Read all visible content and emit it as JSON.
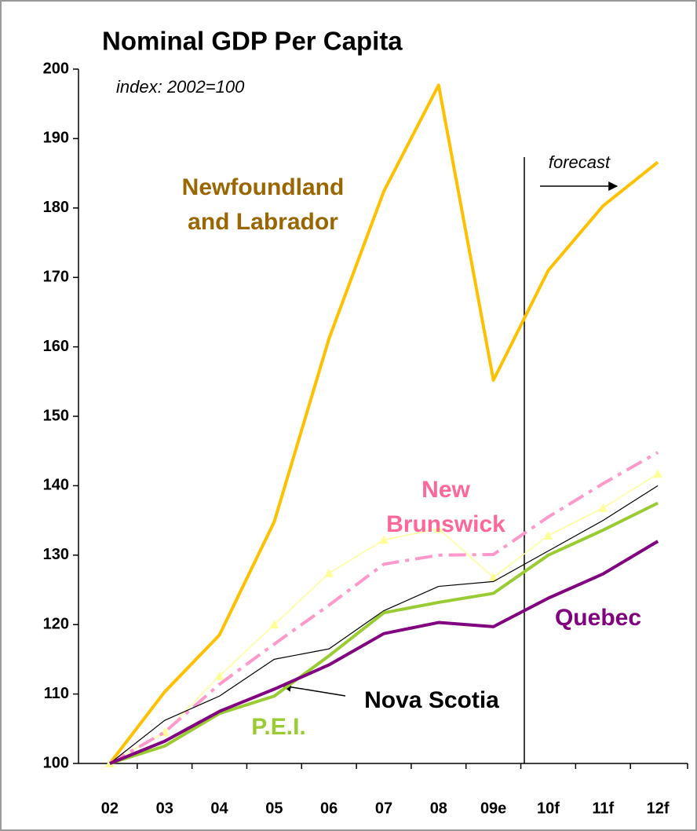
{
  "chart_data": {
    "type": "line",
    "title": "Nominal GDP Per Capita",
    "subtitle": "index: 2002=100",
    "categories": [
      "02",
      "03",
      "04",
      "05",
      "06",
      "07",
      "08",
      "09e",
      "10f",
      "11f",
      "12f"
    ],
    "ylim": [
      100,
      200
    ],
    "yticks": [
      100,
      110,
      120,
      130,
      140,
      150,
      160,
      170,
      180,
      190,
      200
    ],
    "series": [
      {
        "name": "Newfoundland and Labrador",
        "color": "#FFC000",
        "width": 4,
        "values": [
          100,
          110.3,
          118.5,
          134.8,
          161.2,
          182.4,
          197.7,
          155.2,
          171,
          180.3,
          186.6
        ]
      },
      {
        "color": "#FFFF99",
        "width": 1.5,
        "marker": "triangle",
        "values": [
          100,
          104.5,
          112.6,
          120,
          127.4,
          132.2,
          133.8,
          126.8,
          132.8,
          136.8,
          141.7
        ]
      },
      {
        "name": "New Brunswick",
        "color": "#FF99CC",
        "width": 4,
        "dash": true,
        "values": [
          100,
          104.5,
          111.4,
          117.2,
          122.8,
          128.7,
          130,
          130.1,
          135.5,
          140.3,
          144.8
        ]
      },
      {
        "name": "Nova Scotia",
        "color": "#000000",
        "width": 1.2,
        "values": [
          100,
          106.2,
          109.7,
          115,
          116.5,
          122,
          125.5,
          126.2,
          130.6,
          135,
          140
        ]
      },
      {
        "name": "P.E.I.",
        "color": "#99CC33",
        "width": 4,
        "values": [
          100,
          102.5,
          107.2,
          109.7,
          115.5,
          121.7,
          123.2,
          124.5,
          130,
          133.6,
          137.5
        ]
      },
      {
        "name": "Quebec",
        "color": "#800080",
        "width": 4,
        "values": [
          100,
          103.2,
          107.5,
          110.7,
          114.2,
          118.7,
          120.3,
          119.7,
          123.8,
          127.3,
          132
        ]
      }
    ],
    "annotations": [
      {
        "lines": [
          "Newfoundland",
          "and Labrador"
        ],
        "color": "#996600"
      },
      {
        "lines": [
          "New",
          "Brunswick"
        ],
        "color": "#FF6699"
      },
      {
        "lines": [
          "Quebec"
        ],
        "color": "#800080"
      },
      {
        "lines": [
          "Nova Scotia"
        ],
        "color": "#000000"
      },
      {
        "lines": [
          "P.E.I."
        ],
        "color": "#99CC33"
      }
    ],
    "forecast_label": "forecast"
  }
}
